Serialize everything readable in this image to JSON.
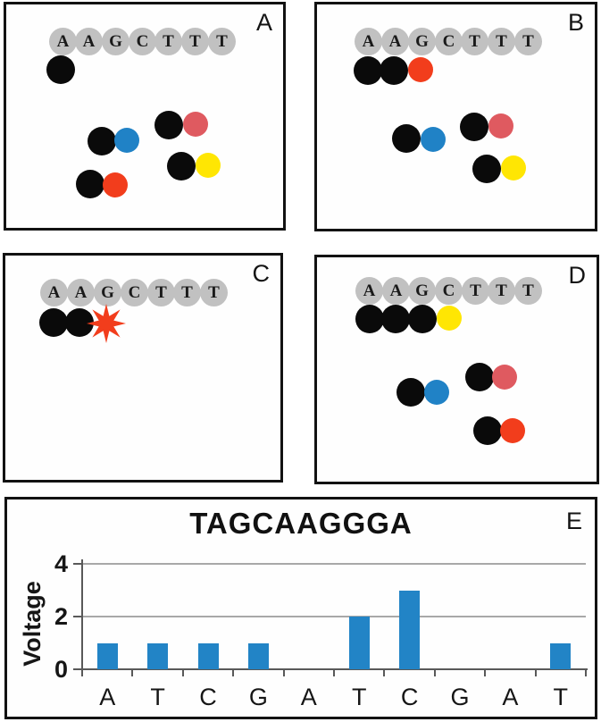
{
  "colors": {
    "template_gray": "#c1c1c1",
    "nucleotide_black": "#0a0a0a",
    "nucleotide_blue": "#2082c6",
    "nucleotide_rose": "#df5a60",
    "nucleotide_orange": "#f23d1c",
    "nucleotide_yellow": "#ffe603",
    "flash_star": "#f23d1c",
    "bar_blue": "#2284c6",
    "gridline_gray": "#a8a8a8",
    "axis_gray": "#595959",
    "panel_border": "#121212"
  },
  "panels": [
    {
      "label": "A",
      "strand": [
        "A",
        "A",
        "G",
        "C",
        "T",
        "T",
        "T"
      ],
      "bound_nucleotides": [
        "black"
      ],
      "free_nucleotide_pairs": [
        [
          "black",
          "blue"
        ],
        [
          "black",
          "rose"
        ],
        [
          "black",
          "orange"
        ],
        [
          "black",
          "yellow"
        ]
      ]
    },
    {
      "label": "B",
      "strand": [
        "A",
        "A",
        "G",
        "C",
        "T",
        "T",
        "T"
      ],
      "bound_nucleotides": [
        "black",
        "black",
        "orange"
      ],
      "free_nucleotide_pairs": [
        [
          "black",
          "blue"
        ],
        [
          "black",
          "rose"
        ],
        [
          "black",
          "yellow"
        ]
      ]
    },
    {
      "label": "C",
      "strand": [
        "A",
        "A",
        "G",
        "C",
        "T",
        "T",
        "T"
      ],
      "bound_nucleotides": [
        "black",
        "black"
      ],
      "flash": "star-burst"
    },
    {
      "label": "D",
      "strand": [
        "A",
        "A",
        "G",
        "C",
        "T",
        "T",
        "T"
      ],
      "bound_nucleotides": [
        "black",
        "black",
        "black",
        "yellow"
      ],
      "free_nucleotide_pairs": [
        [
          "black",
          "blue"
        ],
        [
          "black",
          "rose"
        ],
        [
          "black",
          "orange"
        ]
      ]
    }
  ],
  "chart_data": {
    "type": "bar",
    "panel_label": "E",
    "title": "TAGCAAGGGA",
    "ylabel": "Voltage",
    "xlabel": "",
    "categories": [
      "A",
      "T",
      "C",
      "G",
      "A",
      "T",
      "C",
      "G",
      "A",
      "T"
    ],
    "values": [
      1,
      1,
      1,
      1,
      0,
      2,
      3,
      0,
      0,
      1
    ],
    "yticks": [
      0,
      2,
      4
    ],
    "ylim": [
      0,
      4
    ],
    "gridlines": [
      2,
      4
    ],
    "grid": "horizontal",
    "legend": "none",
    "bar_color": "#2284c6"
  }
}
